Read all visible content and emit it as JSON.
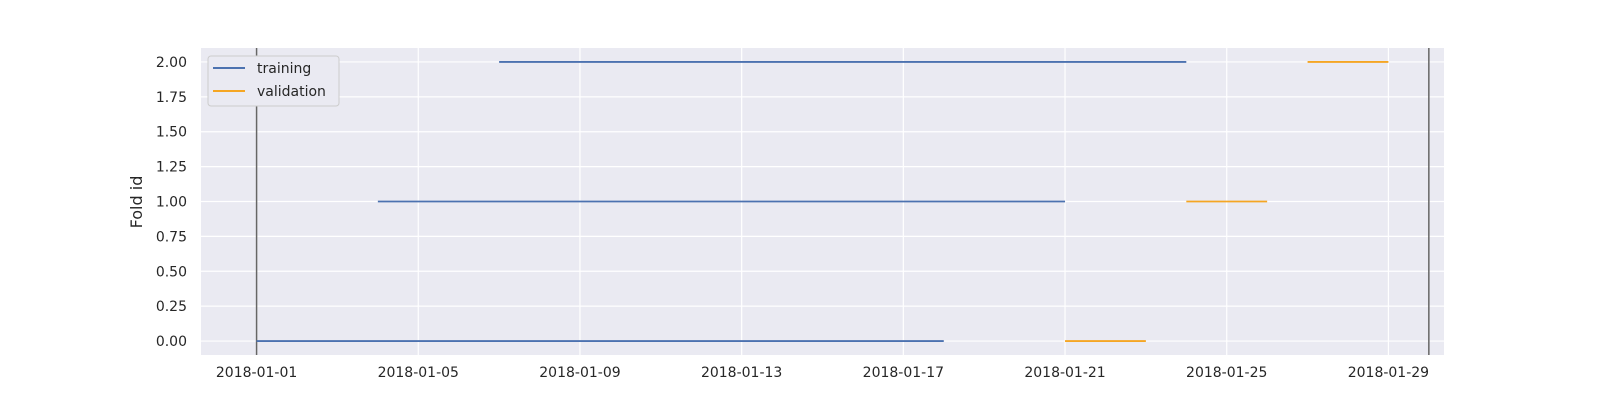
{
  "chart_data": {
    "type": "line",
    "title": "",
    "xlabel": "",
    "ylabel": "Fold id",
    "x_ticks": [
      "2018-01-01",
      "2018-01-05",
      "2018-01-09",
      "2018-01-13",
      "2018-01-17",
      "2018-01-21",
      "2018-01-25",
      "2018-01-29"
    ],
    "y_ticks": [
      "0.00",
      "0.25",
      "0.50",
      "0.75",
      "1.00",
      "1.25",
      "1.50",
      "1.75",
      "2.00"
    ],
    "xlim": [
      "2017-12-30T15:00",
      "2018-01-30T09:00"
    ],
    "ylim": [
      -0.1,
      2.1
    ],
    "grid": true,
    "legend_position": "top-left",
    "vertical_lines": [
      "2018-01-01",
      "2018-01-30"
    ],
    "colors": {
      "training": "#4c72b0",
      "validation": "#f5a623",
      "background": "#eaeaf2",
      "grid": "#ffffff",
      "vline": "#666666"
    },
    "series": [
      {
        "name": "training",
        "segments": [
          {
            "fold": 0,
            "start": "2018-01-01",
            "end": "2018-01-18"
          },
          {
            "fold": 1,
            "start": "2018-01-04",
            "end": "2018-01-21"
          },
          {
            "fold": 2,
            "start": "2018-01-07",
            "end": "2018-01-24"
          }
        ]
      },
      {
        "name": "validation",
        "segments": [
          {
            "fold": 0,
            "start": "2018-01-21",
            "end": "2018-01-23"
          },
          {
            "fold": 1,
            "start": "2018-01-24",
            "end": "2018-01-26"
          },
          {
            "fold": 2,
            "start": "2018-01-27",
            "end": "2018-01-29"
          }
        ]
      }
    ]
  }
}
